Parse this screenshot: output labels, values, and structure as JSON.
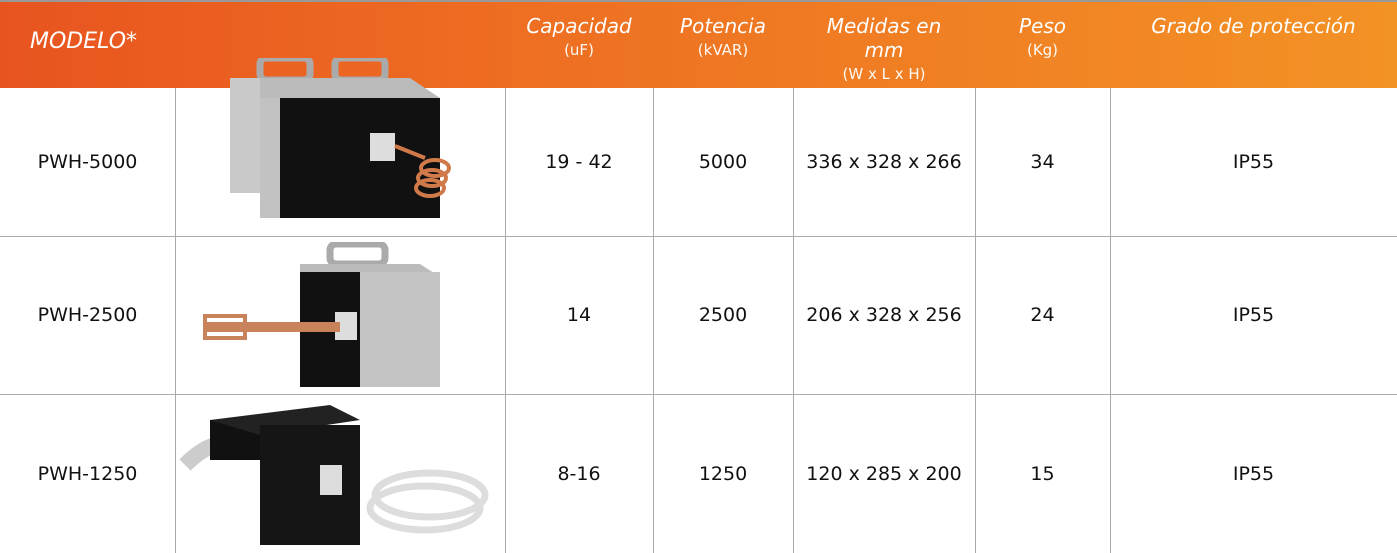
{
  "header": {
    "model": "MODELO*",
    "columns": [
      {
        "title": "Capacidad",
        "unit": "(uF)"
      },
      {
        "title": "Potencia",
        "unit": "(kVAR)"
      },
      {
        "title": "Medidas en mm",
        "unit": "(W x L x H)"
      },
      {
        "title": "Peso",
        "unit": "(Kg)"
      },
      {
        "title": "Grado de protección"
      }
    ]
  },
  "table": {
    "rows": [
      [
        "PWH-5000",
        "19 - 42",
        "5000",
        "336 x 328 x 266",
        "34",
        "IP55"
      ],
      [
        "PWH-2500",
        "14",
        "2500",
        "206 x 328 x 256",
        "24",
        "IP55"
      ],
      [
        "PWH-1250",
        "8-16",
        "1250",
        "120 x 285 x 200",
        "15",
        "IP55"
      ]
    ]
  }
}
